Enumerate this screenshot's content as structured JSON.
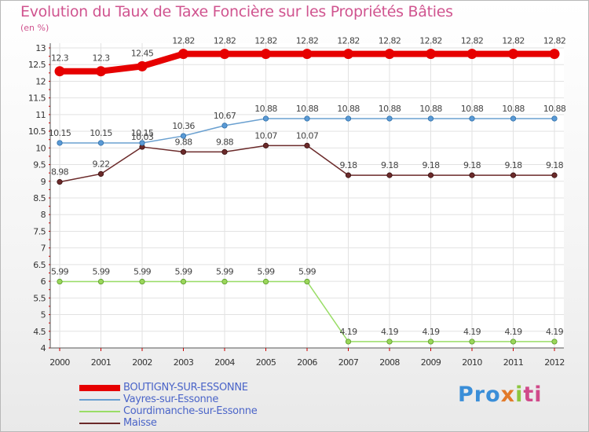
{
  "title": "Evolution du Taux de Taxe Foncière sur les Propriétés Bâties",
  "subtitle": "(en %)",
  "logo": [
    "Pro",
    "x",
    "i",
    "ti"
  ],
  "chart_data": {
    "type": "line",
    "x": [
      "2000",
      "2001",
      "2002",
      "2003",
      "2004",
      "2005",
      "2006",
      "2007",
      "2008",
      "2009",
      "2010",
      "2011",
      "2012"
    ],
    "ylim": [
      4,
      13
    ],
    "yticks": [
      "4",
      "4.5",
      "5",
      "5.5",
      "6",
      "6.5",
      "7",
      "7.5",
      "8",
      "8.5",
      "9",
      "9.5",
      "10",
      "10.5",
      "11",
      "11.5",
      "12",
      "12.5",
      "13"
    ],
    "grid": true,
    "legend_position": "bottom-left",
    "series": [
      {
        "name": "BOUTIGNY-SUR-ESSONNE",
        "color": "#e60000",
        "values": [
          12.3,
          12.3,
          12.45,
          12.82,
          12.82,
          12.82,
          12.82,
          12.82,
          12.82,
          12.82,
          12.82,
          12.82,
          12.82
        ],
        "labels": [
          "12.3",
          "12.3",
          "12.45",
          "12.82",
          "12.82",
          "12.82",
          "12.82",
          "12.82",
          "12.82",
          "12.82",
          "12.82",
          "12.82",
          "12.82"
        ]
      },
      {
        "name": "Vayres-sur-Essonne",
        "color": "#6aa0d0",
        "values": [
          10.15,
          10.15,
          10.15,
          10.36,
          10.67,
          10.88,
          10.88,
          10.88,
          10.88,
          10.88,
          10.88,
          10.88,
          10.88
        ],
        "labels": [
          "10.15",
          "10.15",
          "10.15",
          "10.36",
          "10.67",
          "10.88",
          "10.88",
          "10.88",
          "10.88",
          "10.88",
          "10.88",
          "10.88",
          "10.88"
        ]
      },
      {
        "name": "Courdimanche-sur-Essonne",
        "color": "#99dd66",
        "values": [
          5.99,
          5.99,
          5.99,
          5.99,
          5.99,
          5.99,
          5.99,
          4.19,
          4.19,
          4.19,
          4.19,
          4.19,
          4.19
        ],
        "labels": [
          "5.99",
          "5.99",
          "5.99",
          "5.99",
          "5.99",
          "5.99",
          "5.99",
          "4.19",
          "4.19",
          "4.19",
          "4.19",
          "4.19",
          "4.19"
        ]
      },
      {
        "name": "Maisse",
        "color": "#6b2a2a",
        "values": [
          8.98,
          9.22,
          10.03,
          9.88,
          9.88,
          10.07,
          10.07,
          9.18,
          9.18,
          9.18,
          9.18,
          9.18,
          9.18
        ],
        "labels": [
          "8.98",
          "9.22",
          "10.03",
          "9.88",
          "9.88",
          "10.07",
          "10.07",
          "9.18",
          "9.18",
          "9.18",
          "9.18",
          "9.18",
          "9.18"
        ]
      }
    ]
  }
}
